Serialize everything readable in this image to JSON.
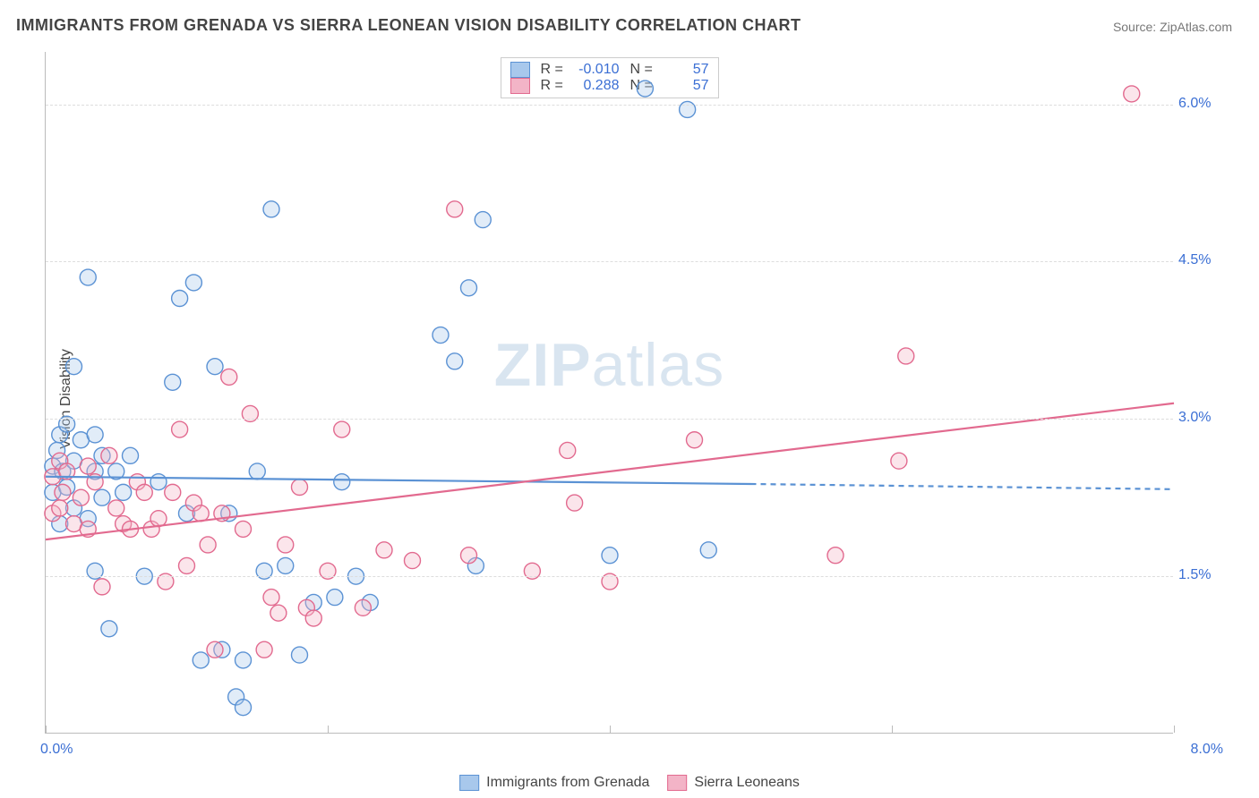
{
  "title": "IMMIGRANTS FROM GRENADA VS SIERRA LEONEAN VISION DISABILITY CORRELATION CHART",
  "source_label": "Source: ",
  "source_name": "ZipAtlas.com",
  "ylabel": "Vision Disability",
  "watermark_a": "ZIP",
  "watermark_b": "atlas",
  "chart": {
    "type": "scatter",
    "xlim": [
      0,
      8
    ],
    "ylim": [
      0,
      6.5
    ],
    "ytick_values": [
      1.5,
      3.0,
      4.5,
      6.0
    ],
    "ytick_labels": [
      "1.5%",
      "3.0%",
      "4.5%",
      "6.0%"
    ],
    "xtick_values": [
      0,
      2,
      4,
      6,
      8
    ],
    "xtick_label_left": "0.0%",
    "xtick_label_right": "8.0%",
    "ytick_color": "#3b6fd4",
    "grid_color": "#dddddd",
    "background_color": "#ffffff",
    "marker_radius": 9,
    "marker_stroke_width": 1.4,
    "marker_fill_opacity": 0.35,
    "line_width": 2.2
  },
  "series": [
    {
      "key": "grenada",
      "label": "Immigrants from Grenada",
      "color_stroke": "#5b92d4",
      "color_fill": "#a8c8ec",
      "R": "-0.010",
      "N": "57",
      "trend": {
        "x1": 0,
        "y1": 2.45,
        "x2": 5.0,
        "y2": 2.38,
        "x2_dash": 8.0,
        "y2_dash": 2.33
      },
      "points": [
        [
          0.05,
          2.55
        ],
        [
          0.05,
          2.3
        ],
        [
          0.08,
          2.7
        ],
        [
          0.1,
          2.0
        ],
        [
          0.1,
          2.85
        ],
        [
          0.12,
          2.5
        ],
        [
          0.15,
          2.35
        ],
        [
          0.15,
          2.95
        ],
        [
          0.2,
          2.15
        ],
        [
          0.2,
          2.6
        ],
        [
          0.2,
          3.5
        ],
        [
          0.25,
          2.8
        ],
        [
          0.3,
          2.05
        ],
        [
          0.3,
          4.35
        ],
        [
          0.35,
          1.55
        ],
        [
          0.35,
          2.5
        ],
        [
          0.35,
          2.85
        ],
        [
          0.4,
          2.25
        ],
        [
          0.4,
          2.65
        ],
        [
          0.45,
          1.0
        ],
        [
          0.5,
          2.5
        ],
        [
          0.55,
          2.3
        ],
        [
          0.6,
          2.65
        ],
        [
          0.7,
          1.5
        ],
        [
          0.8,
          2.4
        ],
        [
          0.9,
          3.35
        ],
        [
          0.95,
          4.15
        ],
        [
          1.0,
          2.1
        ],
        [
          1.05,
          4.3
        ],
        [
          1.1,
          0.7
        ],
        [
          1.2,
          3.5
        ],
        [
          1.25,
          0.8
        ],
        [
          1.3,
          2.1
        ],
        [
          1.35,
          0.35
        ],
        [
          1.4,
          0.25
        ],
        [
          1.4,
          0.7
        ],
        [
          1.5,
          2.5
        ],
        [
          1.55,
          1.55
        ],
        [
          1.6,
          5.0
        ],
        [
          1.7,
          1.6
        ],
        [
          1.8,
          0.75
        ],
        [
          1.9,
          1.25
        ],
        [
          2.05,
          1.3
        ],
        [
          2.1,
          2.4
        ],
        [
          2.2,
          1.5
        ],
        [
          2.3,
          1.25
        ],
        [
          2.8,
          3.8
        ],
        [
          2.9,
          3.55
        ],
        [
          3.0,
          4.25
        ],
        [
          3.05,
          1.6
        ],
        [
          3.1,
          4.9
        ],
        [
          4.0,
          1.7
        ],
        [
          4.25,
          6.15
        ],
        [
          4.55,
          5.95
        ],
        [
          4.7,
          1.75
        ]
      ]
    },
    {
      "key": "sierra",
      "label": "Sierra Leoneans",
      "color_stroke": "#e26a8f",
      "color_fill": "#f3b4c7",
      "R": "0.288",
      "N": "57",
      "trend": {
        "x1": 0,
        "y1": 1.85,
        "x2": 8.0,
        "y2": 3.15
      },
      "points": [
        [
          0.05,
          2.45
        ],
        [
          0.05,
          2.1
        ],
        [
          0.1,
          2.6
        ],
        [
          0.1,
          2.15
        ],
        [
          0.12,
          2.3
        ],
        [
          0.15,
          2.5
        ],
        [
          0.2,
          2.0
        ],
        [
          0.25,
          2.25
        ],
        [
          0.3,
          1.95
        ],
        [
          0.3,
          2.55
        ],
        [
          0.35,
          2.4
        ],
        [
          0.4,
          1.4
        ],
        [
          0.45,
          2.65
        ],
        [
          0.5,
          2.15
        ],
        [
          0.55,
          2.0
        ],
        [
          0.6,
          1.95
        ],
        [
          0.65,
          2.4
        ],
        [
          0.7,
          2.3
        ],
        [
          0.75,
          1.95
        ],
        [
          0.8,
          2.05
        ],
        [
          0.85,
          1.45
        ],
        [
          0.9,
          2.3
        ],
        [
          0.95,
          2.9
        ],
        [
          1.0,
          1.6
        ],
        [
          1.05,
          2.2
        ],
        [
          1.1,
          2.1
        ],
        [
          1.15,
          1.8
        ],
        [
          1.2,
          0.8
        ],
        [
          1.25,
          2.1
        ],
        [
          1.3,
          3.4
        ],
        [
          1.4,
          1.95
        ],
        [
          1.45,
          3.05
        ],
        [
          1.55,
          0.8
        ],
        [
          1.6,
          1.3
        ],
        [
          1.65,
          1.15
        ],
        [
          1.7,
          1.8
        ],
        [
          1.8,
          2.35
        ],
        [
          1.85,
          1.2
        ],
        [
          1.9,
          1.1
        ],
        [
          2.0,
          1.55
        ],
        [
          2.1,
          2.9
        ],
        [
          2.25,
          1.2
        ],
        [
          2.4,
          1.75
        ],
        [
          2.6,
          1.65
        ],
        [
          2.9,
          5.0
        ],
        [
          3.0,
          1.7
        ],
        [
          3.45,
          1.55
        ],
        [
          3.7,
          2.7
        ],
        [
          3.75,
          2.2
        ],
        [
          4.0,
          1.45
        ],
        [
          4.6,
          2.8
        ],
        [
          5.6,
          1.7
        ],
        [
          6.05,
          2.6
        ],
        [
          6.1,
          3.6
        ],
        [
          7.7,
          6.1
        ]
      ]
    }
  ],
  "legend_labels": {
    "R": "R =",
    "N": "N ="
  }
}
